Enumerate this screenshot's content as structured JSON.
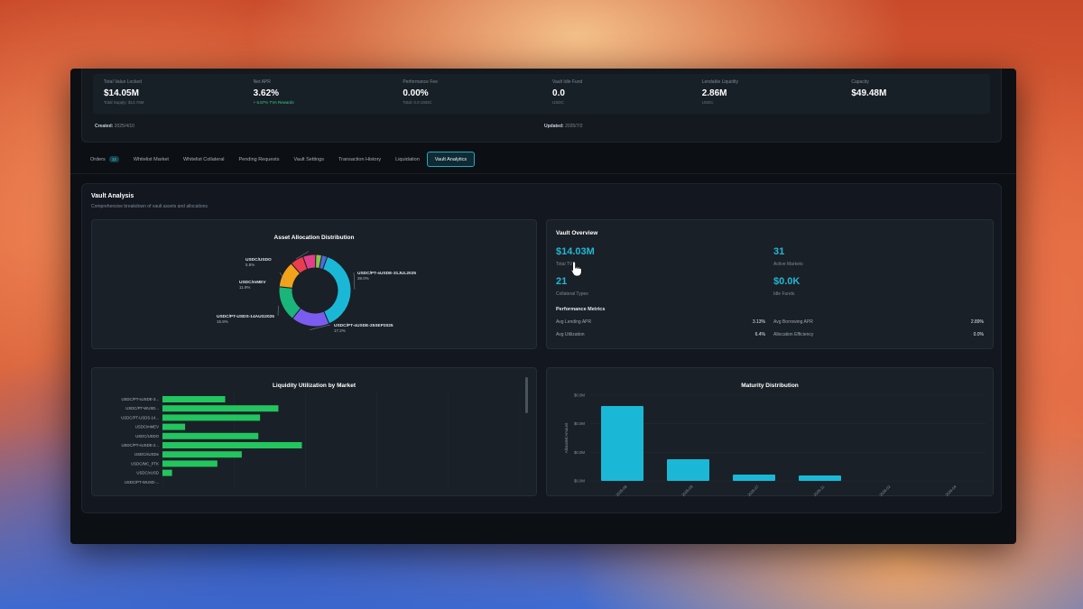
{
  "stats": [
    {
      "label": "Total Value Locked",
      "value": "$14.05M",
      "sub": "Total Supply: $13.76M",
      "sub_green": false
    },
    {
      "label": "Net APR",
      "value": "3.62%",
      "sub": "+ 6.87% TVA Rewards",
      "sub_green": true
    },
    {
      "label": "Performance Fee",
      "value": "0.00%",
      "sub": "Total: 0.0 USDC",
      "sub_green": false
    },
    {
      "label": "Vault Idle Fund",
      "value": "0.0",
      "sub": "USDC",
      "sub_green": false
    },
    {
      "label": "Lendable Liquidity",
      "value": "2.86M",
      "sub": "USDC",
      "sub_green": false
    },
    {
      "label": "Capacity",
      "value": "$49.48M",
      "sub": "",
      "sub_green": false
    }
  ],
  "created": {
    "label": "Created:",
    "value": "2025/4/10"
  },
  "updated": {
    "label": "Updated:",
    "value": "2025/7/2"
  },
  "tabs": [
    {
      "label": "Orders",
      "badge": "12",
      "active": false
    },
    {
      "label": "Whitelist Market",
      "badge": "",
      "active": false
    },
    {
      "label": "Whitelist Collateral",
      "badge": "",
      "active": false
    },
    {
      "label": "Pending Requests",
      "badge": "",
      "active": false
    },
    {
      "label": "Vault Settings",
      "badge": "",
      "active": false
    },
    {
      "label": "Transaction History",
      "badge": "",
      "active": false
    },
    {
      "label": "Liquidation",
      "badge": "",
      "active": false
    },
    {
      "label": "Vault Analytics",
      "badge": "",
      "active": true
    }
  ],
  "analysis": {
    "title": "Vault Analysis",
    "subtitle": "Comprehensive breakdown of vault assets and allocations"
  },
  "overview": {
    "title": "Vault Overview",
    "total_value": "$14.03M",
    "total_value_label": "Total TVL",
    "active_markets": "31",
    "active_markets_label": "Active Markets",
    "collateral_types": "21",
    "collateral_types_label": "Collateral Types",
    "idle_funds": "$0.0K",
    "idle_funds_label": "Idle Funds",
    "perf_title": "Performance Metrics",
    "avg_lending_apr_label": "Avg Lending APR",
    "avg_lending_apr": "3.13%",
    "avg_borrowing_apr_label": "Avg Borrowing APR",
    "avg_borrowing_apr": "2.89%",
    "avg_utilization_label": "Avg Utilization",
    "avg_utilization": "6.4%",
    "allocation_efficiency_label": "Allocation Efficiency",
    "allocation_efficiency": "0.0%"
  },
  "chart_data": [
    {
      "type": "pie",
      "title": "Asset Allocation Distribution",
      "slices": [
        {
          "label": "USDC/PT-sUSDE-31JUL2025",
          "pct_label": "38.0%",
          "value": 38.0,
          "color": "#1ab8d6"
        },
        {
          "label": "USDC/PT-sUSDE-25SEP2025",
          "pct_label": "17.2%",
          "value": 17.2,
          "color": "#7b5cf0"
        },
        {
          "label": "USDC/PT-USDS-14AUG2025",
          "pct_label": "15.9%",
          "value": 15.9,
          "color": "#19b57a"
        },
        {
          "label": "USDC/mMEV",
          "pct_label": "11.9%",
          "value": 11.9,
          "color": "#f3a21b"
        },
        {
          "label": "",
          "pct_label": "",
          "value": 6.0,
          "color": "#ea3d4e"
        },
        {
          "label": "USDC/USDO",
          "pct_label": "5.8%",
          "value": 5.8,
          "color": "#e23f8a"
        },
        {
          "label": "",
          "pct_label": "",
          "value": 2.7,
          "color": "#8bc34a"
        },
        {
          "label": "",
          "pct_label": "",
          "value": 2.5,
          "color": "#4f6bd8"
        }
      ]
    },
    {
      "type": "bar",
      "orientation": "horizontal",
      "title": "Liquidity Utilization by Market",
      "categories": [
        "USDC/PT-sUSDE-3...",
        "USDC/PT-WUSD...",
        "USDC/PT-USDS-14...",
        "USDC/mMEV",
        "USDC/USDO",
        "USDC/PT-sUSDE-2...",
        "USDC/sUSDe",
        "USDC/MC_PTK",
        "USDC/cUSD",
        "USDC/PT-WUSD-..."
      ],
      "values": [
        72,
        133,
        112,
        26,
        110,
        160,
        91,
        63,
        11,
        0
      ],
      "xlim": [
        0,
        410
      ],
      "color": "#22c55e"
    },
    {
      "type": "bar",
      "title": "Maturity Distribution",
      "ylabel": "Allocated Amount",
      "categories": [
        "2025-08",
        "2025-09",
        "2025-07",
        "2025-11",
        "2026-02",
        "2026-04"
      ],
      "values": [
        8.3,
        2.4,
        0.7,
        0.6,
        0.0,
        0.0
      ],
      "ylim": [
        0,
        9.5
      ],
      "y_ticks": [
        "$0.0M",
        "$0.0M",
        "$0.0M",
        "$0.0M"
      ],
      "color": "#1ab8d6"
    }
  ]
}
